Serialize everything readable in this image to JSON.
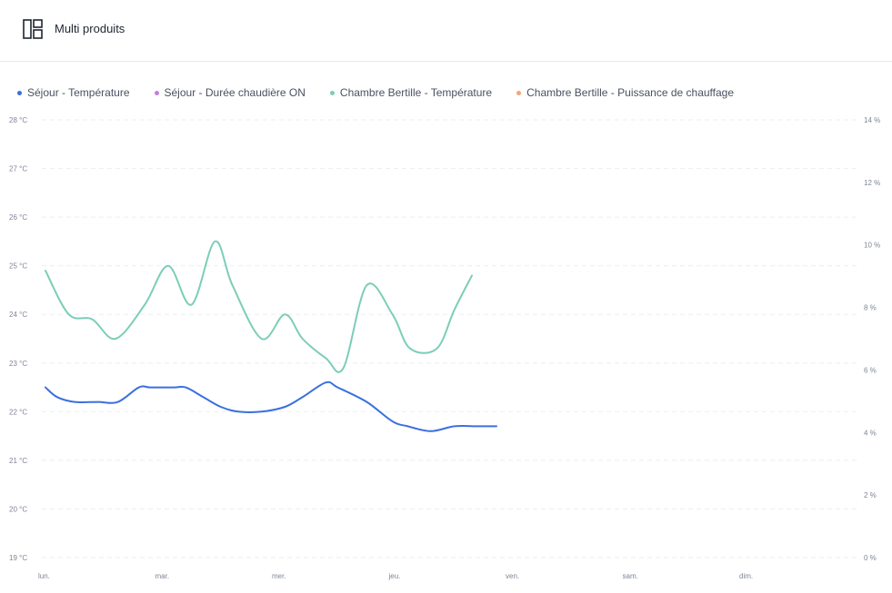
{
  "header": {
    "title": "Multi produits",
    "icon": "dashboard-layout-icon"
  },
  "legend": [
    {
      "label": "Séjour - Température",
      "color": "#3b6fe0"
    },
    {
      "label": "Séjour - Durée chaudière ON",
      "color": "#c77de0"
    },
    {
      "label": "Chambre Bertille - Température",
      "color": "#7ccdb8"
    },
    {
      "label": "Chambre Bertille - Puissance de chauffage",
      "color": "#f4a37c"
    }
  ],
  "chart_data": {
    "type": "line",
    "x_ticks": [
      "lun.",
      "mar.",
      "mer.",
      "jeu.",
      "ven.",
      "sam.",
      "dim."
    ],
    "y_left": {
      "ticks": [
        "28 °C",
        "27 °C",
        "26 °C",
        "25 °C",
        "24 °C",
        "23 °C",
        "22 °C",
        "21 °C",
        "20 °C",
        "19 °C"
      ],
      "min": 19,
      "max": 28,
      "unit": "°C"
    },
    "y_right": {
      "ticks": [
        "14 %",
        "12 %",
        "10 %",
        "8 %",
        "6 %",
        "4 %",
        "2 %",
        "0 %"
      ],
      "min": 0,
      "max": 14,
      "unit": "%"
    },
    "grid": true,
    "legend_position": "top-left",
    "series": [
      {
        "name": "Séjour - Température",
        "color": "#3b6fe0",
        "axis": "left",
        "x": [
          0,
          0.1,
          0.25,
          0.45,
          0.62,
          0.8,
          0.9,
          1.1,
          1.2,
          1.35,
          1.5,
          1.65,
          1.85,
          2.05,
          2.2,
          2.4,
          2.5,
          2.75,
          2.97,
          3.1,
          3.3,
          3.5,
          3.7,
          3.86
        ],
        "values": [
          22.5,
          22.3,
          22.2,
          22.2,
          22.2,
          22.5,
          22.5,
          22.5,
          22.5,
          22.3,
          22.1,
          22.0,
          22.0,
          22.1,
          22.3,
          22.6,
          22.5,
          22.2,
          21.8,
          21.7,
          21.6,
          21.7,
          21.7,
          21.7
        ]
      },
      {
        "name": "Chambre Bertille - Température",
        "color": "#7ccdb8",
        "axis": "left",
        "x": [
          0,
          0.2,
          0.4,
          0.6,
          0.85,
          1.05,
          1.25,
          1.45,
          1.6,
          1.85,
          2.05,
          2.2,
          2.4,
          2.55,
          2.75,
          2.97,
          3.12,
          3.35,
          3.5,
          3.65
        ],
        "values": [
          24.9,
          24.0,
          23.9,
          23.5,
          24.2,
          25.0,
          24.2,
          25.5,
          24.6,
          23.5,
          24.0,
          23.5,
          23.1,
          22.9,
          24.6,
          24.0,
          23.3,
          23.3,
          24.1,
          24.8
        ]
      }
    ]
  }
}
